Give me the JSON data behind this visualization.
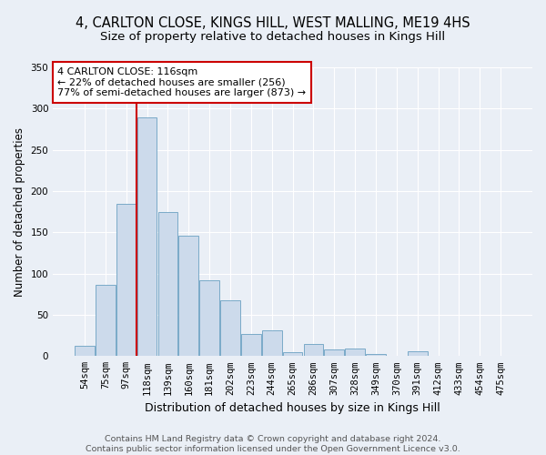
{
  "title": "4, CARLTON CLOSE, KINGS HILL, WEST MALLING, ME19 4HS",
  "subtitle": "Size of property relative to detached houses in Kings Hill",
  "xlabel": "Distribution of detached houses by size in Kings Hill",
  "ylabel": "Number of detached properties",
  "bin_labels": [
    "54sqm",
    "75sqm",
    "97sqm",
    "118sqm",
    "139sqm",
    "160sqm",
    "181sqm",
    "202sqm",
    "223sqm",
    "244sqm",
    "265sqm",
    "286sqm",
    "307sqm",
    "328sqm",
    "349sqm",
    "370sqm",
    "391sqm",
    "412sqm",
    "433sqm",
    "454sqm",
    "475sqm"
  ],
  "bar_values": [
    13,
    86,
    184,
    289,
    175,
    146,
    92,
    68,
    27,
    31,
    5,
    15,
    8,
    9,
    3,
    0,
    6,
    0,
    0,
    0,
    0
  ],
  "bar_color": "#ccdaeb",
  "bar_edge_color": "#7aaac8",
  "vline_x": 2.5,
  "vline_color": "#cc0000",
  "annotation_text": "4 CARLTON CLOSE: 116sqm\n← 22% of detached houses are smaller (256)\n77% of semi-detached houses are larger (873) →",
  "annotation_box_color": "#ffffff",
  "annotation_box_edge": "#cc0000",
  "ylim": [
    0,
    350
  ],
  "yticks": [
    0,
    50,
    100,
    150,
    200,
    250,
    300,
    350
  ],
  "background_color": "#eaeff6",
  "plot_bg_color": "#eaeff6",
  "footer": "Contains HM Land Registry data © Crown copyright and database right 2024.\nContains public sector information licensed under the Open Government Licence v3.0.",
  "title_fontsize": 10.5,
  "subtitle_fontsize": 9.5,
  "xlabel_fontsize": 9,
  "ylabel_fontsize": 8.5,
  "tick_fontsize": 7.5,
  "annotation_fontsize": 8,
  "footer_fontsize": 6.8
}
